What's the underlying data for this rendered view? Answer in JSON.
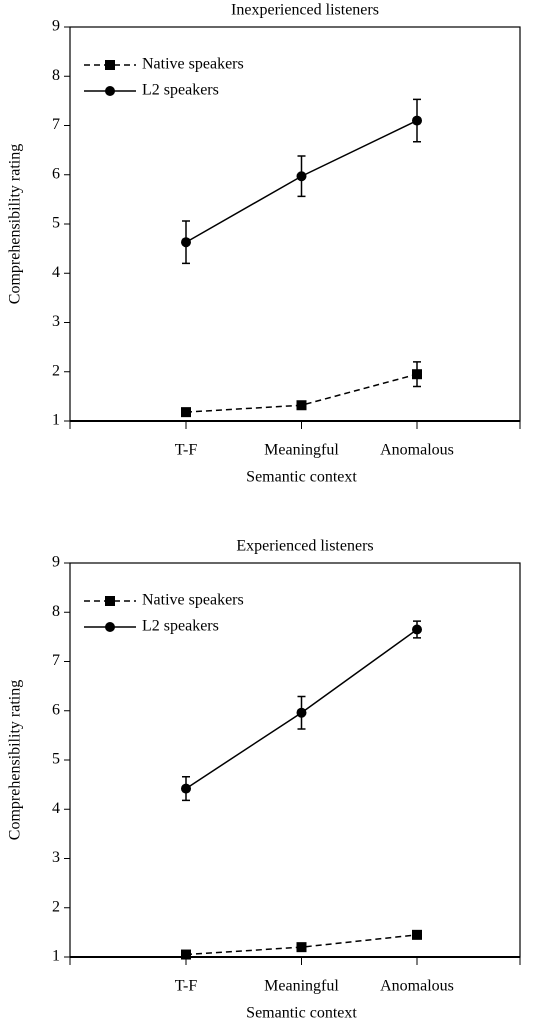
{
  "chart_data": [
    {
      "type": "line",
      "title": "Inexperienced listeners",
      "xlabel": "Semantic context",
      "ylabel": "Comprehensibility rating",
      "categories": [
        "T-F",
        "Meaningful",
        "Anomalous"
      ],
      "series": [
        {
          "name": "Native speakers",
          "color": "#000000",
          "line_style": "dashed",
          "marker": "square",
          "values": [
            1.18,
            1.32,
            1.95
          ],
          "errors": [
            0.05,
            0.05,
            0.25
          ]
        },
        {
          "name": "L2 speakers",
          "color": "#000000",
          "line_style": "solid",
          "marker": "circle",
          "values": [
            4.63,
            5.97,
            7.1
          ],
          "errors": [
            0.43,
            0.41,
            0.43
          ]
        }
      ],
      "ylim": [
        1,
        9
      ],
      "yticks": [
        1,
        2,
        3,
        4,
        5,
        6,
        7,
        8,
        9
      ],
      "legend": "upper left"
    },
    {
      "type": "line",
      "title": "Experienced listeners",
      "xlabel": "Semantic context",
      "ylabel": "Comprehensibility rating",
      "categories": [
        "T-F",
        "Meaningful",
        "Anomalous"
      ],
      "series": [
        {
          "name": "Native speakers",
          "color": "#000000",
          "line_style": "dashed",
          "marker": "square",
          "values": [
            1.05,
            1.2,
            1.45
          ],
          "errors": [
            0.03,
            0.03,
            0.07
          ]
        },
        {
          "name": "L2 speakers",
          "color": "#000000",
          "line_style": "solid",
          "marker": "circle",
          "values": [
            4.42,
            5.96,
            7.65
          ],
          "errors": [
            0.24,
            0.33,
            0.17
          ]
        }
      ],
      "ylim": [
        1,
        9
      ],
      "yticks": [
        1,
        2,
        3,
        4,
        5,
        6,
        7,
        8,
        9
      ],
      "legend": "upper left"
    }
  ]
}
